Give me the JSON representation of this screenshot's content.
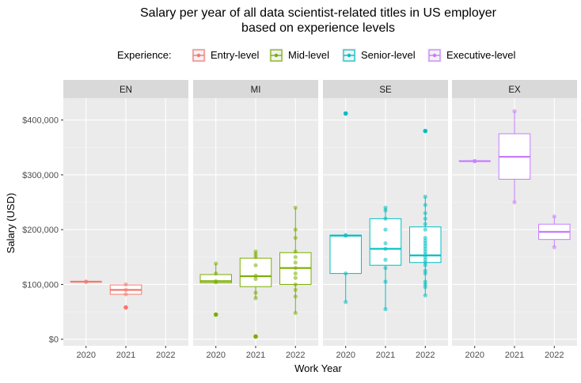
{
  "chart_data": {
    "type": "boxplot",
    "title_line1": "Salary per year of all data scientist-related titles in US employer",
    "title_line2": "based on experience levels",
    "xlabel": "Work Year",
    "ylabel": "Salary (USD)",
    "ylim": [
      -12000,
      440000
    ],
    "y_ticks": [
      0,
      100000,
      200000,
      300000,
      400000
    ],
    "y_tick_labels": [
      "$0",
      "$100,000",
      "$200,000",
      "$300,000",
      "$400,000"
    ],
    "x_categories": [
      "2020",
      "2021",
      "2022"
    ],
    "legend": {
      "title": "Experience:",
      "position": "top",
      "entries": [
        {
          "label": "Entry-level",
          "color": "#F8766D"
        },
        {
          "label": "Mid-level",
          "color": "#7CAE00"
        },
        {
          "label": "Senior-level",
          "color": "#00BFC4"
        },
        {
          "label": "Executive-level",
          "color": "#C77CFF"
        }
      ]
    },
    "panels": [
      {
        "strip": "EN",
        "color": "#F8766D",
        "boxes": [
          {
            "year": "2020",
            "min": 105000,
            "q1": 105000,
            "median": 105000,
            "q3": 105000,
            "max": 105000,
            "outliers": [],
            "points": [
              105000,
              105000
            ]
          },
          {
            "year": "2021",
            "min": 82000,
            "q1": 82000,
            "median": 90000,
            "q3": 99000,
            "max": 100000,
            "outliers": [
              58000
            ],
            "points": [
              58000,
              82000,
              90000,
              100000
            ]
          }
        ]
      },
      {
        "strip": "MI",
        "color": "#7CAE00",
        "boxes": [
          {
            "year": "2020",
            "min": 103000,
            "q1": 103000,
            "median": 106000,
            "q3": 118000,
            "max": 138000,
            "outliers": [
              45000
            ],
            "points": [
              45000,
              104000,
              106000,
              120000,
              138000
            ]
          },
          {
            "year": "2021",
            "min": 75000,
            "q1": 96000,
            "median": 115000,
            "q3": 148000,
            "max": 160000,
            "outliers": [
              5000
            ],
            "points": [
              5000,
              75000,
              85000,
              110000,
              116000,
              135000,
              150000,
              155000,
              160000
            ]
          },
          {
            "year": "2022",
            "min": 48000,
            "q1": 100000,
            "median": 130000,
            "q3": 158000,
            "max": 240000,
            "outliers": [],
            "points": [
              48000,
              78000,
              90000,
              100000,
              112000,
              120000,
              130000,
              140000,
              150000,
              160000,
              185000,
              200000,
              240000
            ]
          }
        ]
      },
      {
        "strip": "SE",
        "color": "#00BFC4",
        "boxes": [
          {
            "year": "2020",
            "min": 68000,
            "q1": 120000,
            "median": 189000,
            "q3": 190000,
            "max": 190000,
            "outliers": [
              412000
            ],
            "points": [
              68000,
              120000,
              189000,
              190000,
              412000
            ]
          },
          {
            "year": "2021",
            "min": 55000,
            "q1": 135000,
            "median": 165000,
            "q3": 220000,
            "max": 240000,
            "outliers": [],
            "points": [
              55000,
              105000,
              130000,
              145000,
              165000,
              175000,
              200000,
              220000,
              235000,
              240000
            ]
          },
          {
            "year": "2022",
            "min": 80000,
            "q1": 140000,
            "median": 153000,
            "q3": 205000,
            "max": 260000,
            "outliers": [
              380000
            ],
            "points": [
              80000,
              95000,
              100000,
              105000,
              120000,
              125000,
              135000,
              140000,
              145000,
              150000,
              155000,
              160000,
              165000,
              170000,
              175000,
              180000,
              185000,
              200000,
              210000,
              220000,
              230000,
              245000,
              260000,
              380000
            ]
          }
        ]
      },
      {
        "strip": "EX",
        "color": "#C77CFF",
        "boxes": [
          {
            "year": "2020",
            "min": 325000,
            "q1": 325000,
            "median": 325000,
            "q3": 325000,
            "max": 325000,
            "outliers": [],
            "points": [
              325000,
              325000
            ]
          },
          {
            "year": "2021",
            "min": 250000,
            "q1": 292000,
            "median": 333000,
            "q3": 375000,
            "max": 416000,
            "outliers": [],
            "points": [
              250000,
              416000
            ]
          },
          {
            "year": "2022",
            "min": 168000,
            "q1": 182000,
            "median": 196000,
            "q3": 210000,
            "max": 224000,
            "outliers": [],
            "points": [
              168000,
              224000
            ]
          }
        ]
      }
    ]
  }
}
